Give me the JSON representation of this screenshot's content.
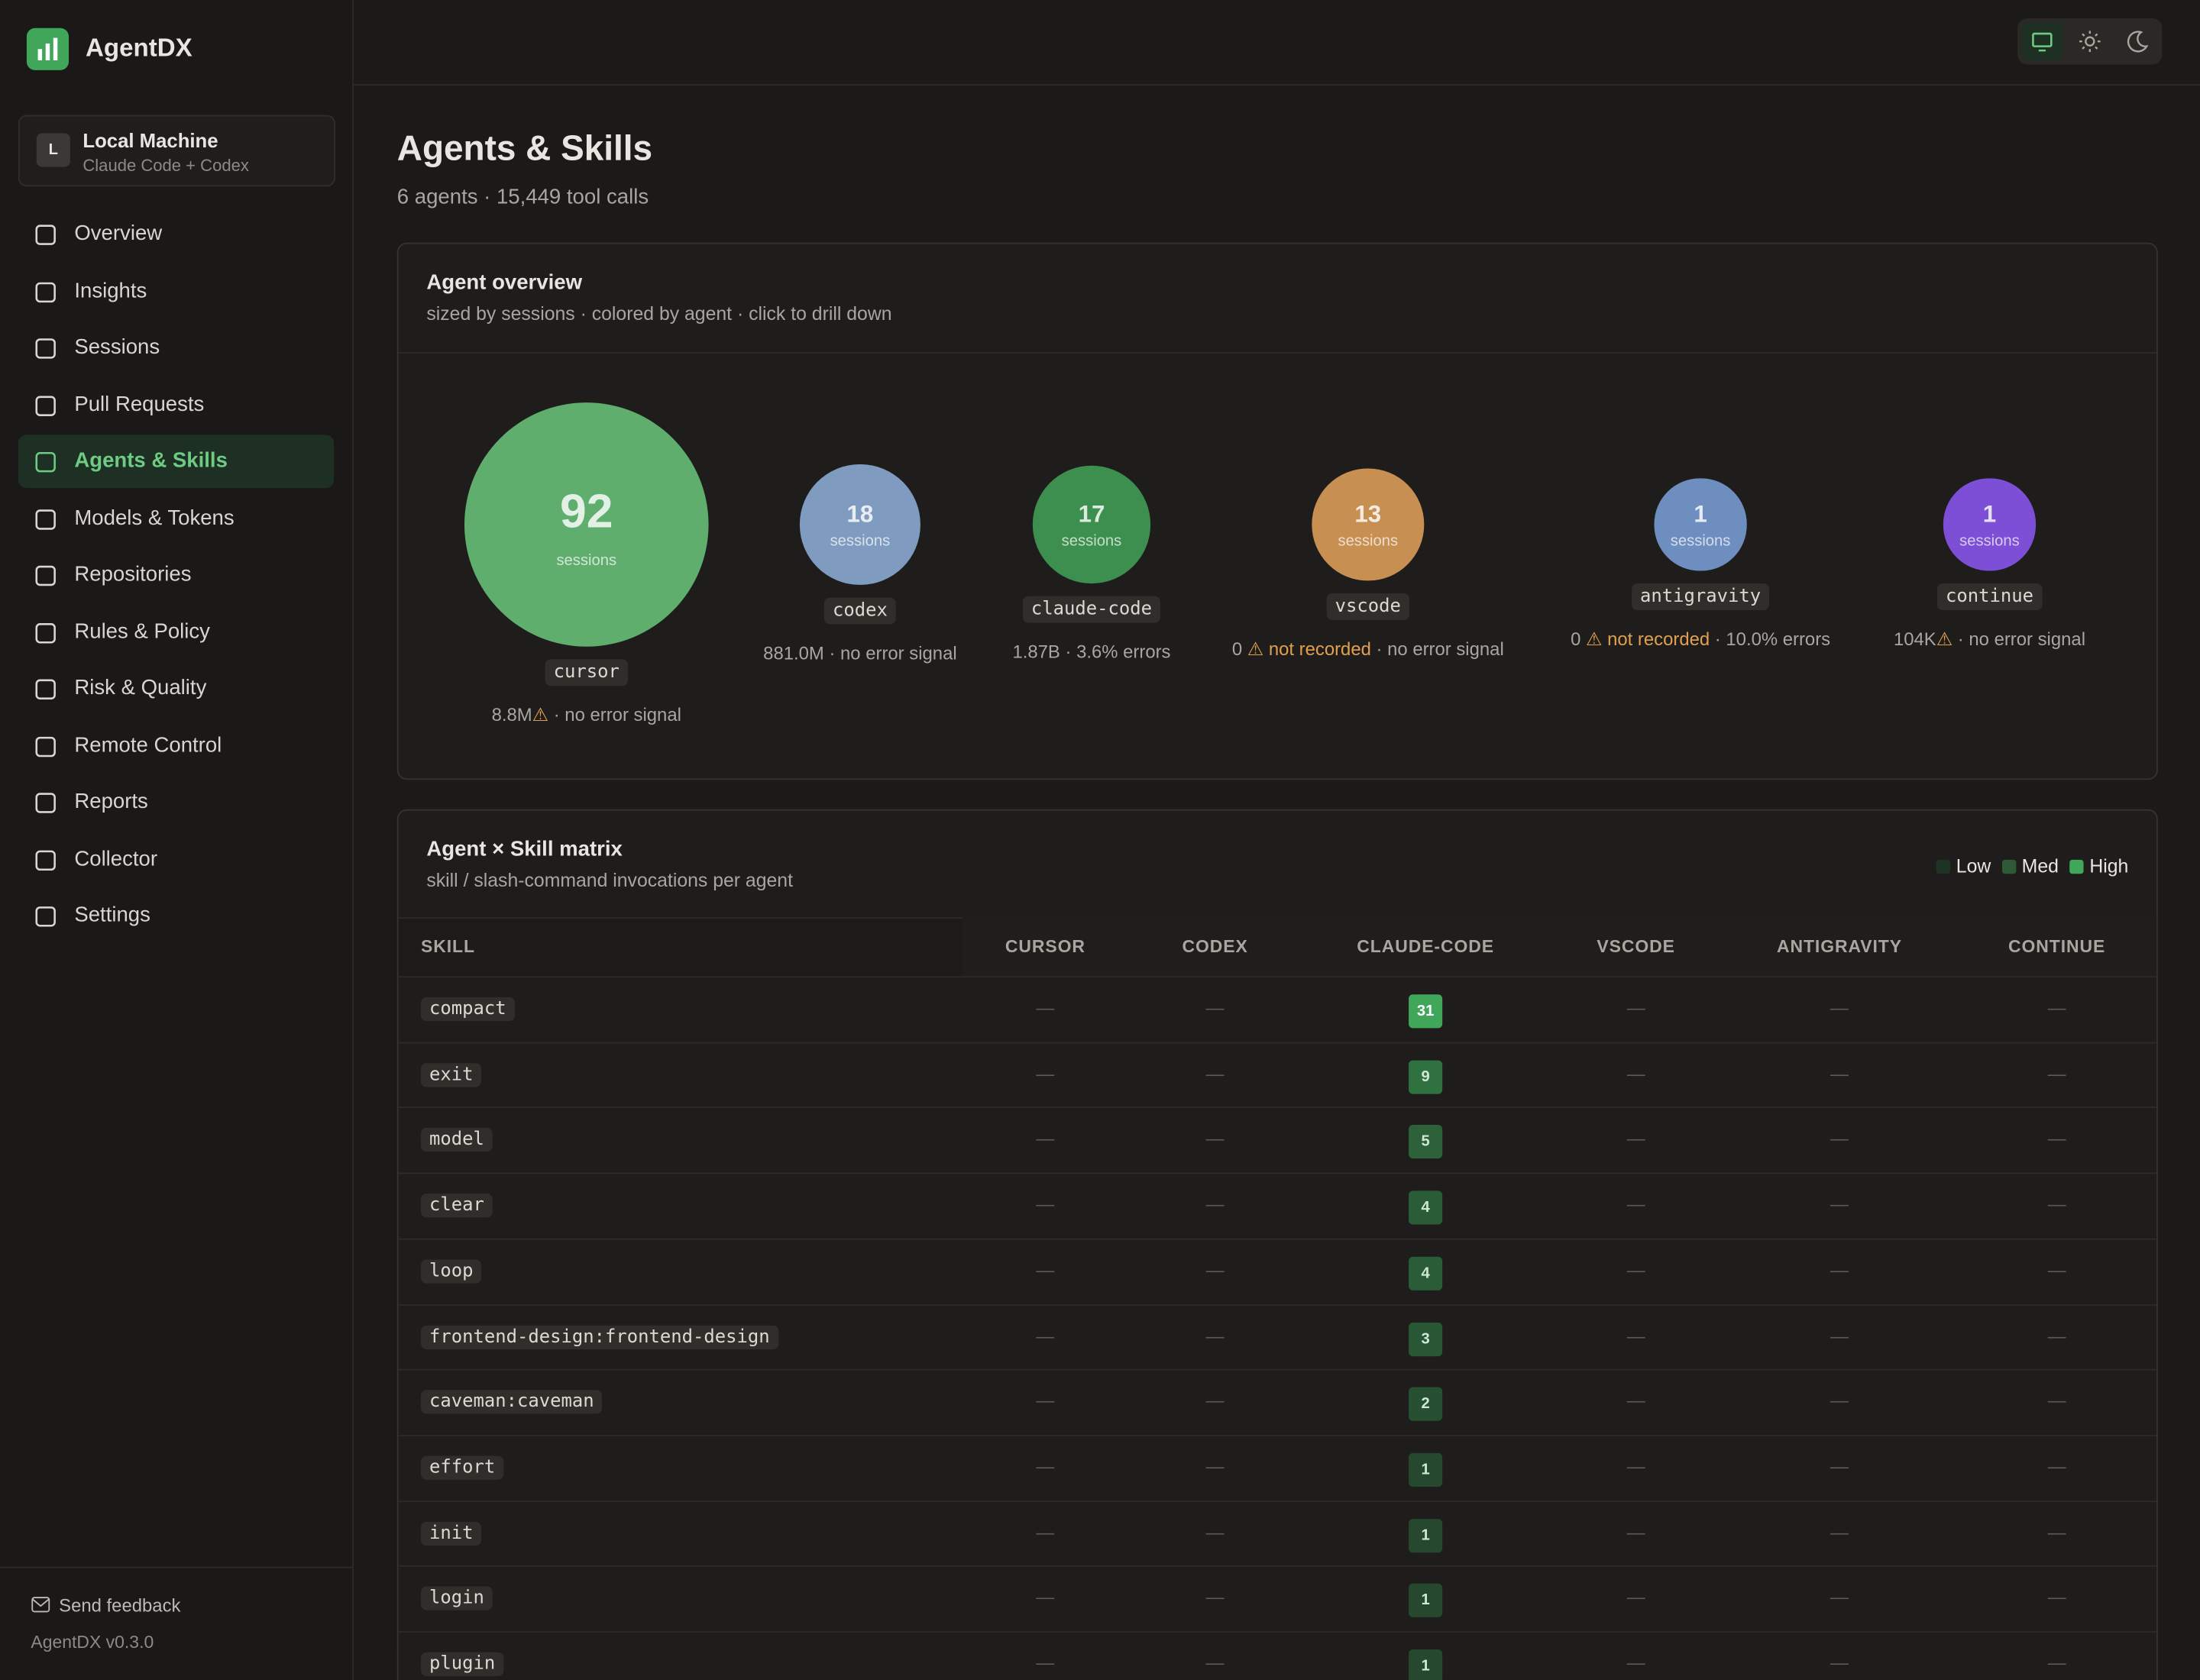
{
  "app": {
    "name": "AgentDX",
    "workspace": {
      "initial": "L",
      "name": "Local Machine",
      "subtitle": "Claude Code + Codex"
    },
    "nav": [
      "Overview",
      "Insights",
      "Sessions",
      "Pull Requests",
      "Agents & Skills",
      "Models & Tokens",
      "Repositories",
      "Rules & Policy",
      "Risk & Quality",
      "Remote Control",
      "Reports",
      "Collector",
      "Settings"
    ],
    "active_nav": 4,
    "feedback": "Send feedback",
    "version": "AgentDX v0.3.0"
  },
  "header": {
    "title": "Agents & Skills",
    "subtitle": "6 agents · 15,449 tool calls"
  },
  "overview": {
    "title": "Agent overview",
    "subtitle": "sized by sessions · colored by agent · click to drill down",
    "unit": "sessions",
    "agents": [
      {
        "name": "cursor",
        "sessions": 92,
        "color": "#5fae6e",
        "stats": [
          {
            "text": "8.8M"
          },
          {
            "text": "⚠",
            "tone": "warn"
          },
          {
            "text": " · no error signal"
          }
        ]
      },
      {
        "name": "codex",
        "sessions": 18,
        "color": "#7f9cc0",
        "stats": [
          {
            "text": "881.0M · no error signal"
          }
        ]
      },
      {
        "name": "claude-code",
        "sessions": 17,
        "color": "#3d8f4f",
        "stats": [
          {
            "text": "1.87B · 3.6% errors"
          }
        ]
      },
      {
        "name": "vscode",
        "sessions": 13,
        "color": "#c88f52",
        "stats": [
          {
            "text": "0 "
          },
          {
            "text": "⚠ not recorded",
            "tone": "warn"
          },
          {
            "text": " · no error signal"
          }
        ]
      },
      {
        "name": "antigravity",
        "sessions": 1,
        "color": "#6f8ec0",
        "stats": [
          {
            "text": "0 "
          },
          {
            "text": "⚠ not recorded",
            "tone": "warn"
          },
          {
            "text": " · 10.0% errors"
          }
        ]
      },
      {
        "name": "continue",
        "sessions": 1,
        "color": "#7d4fd6",
        "stats": [
          {
            "text": "104K"
          },
          {
            "text": "⚠",
            "tone": "warn"
          },
          {
            "text": " · no error signal"
          }
        ]
      }
    ]
  },
  "matrix": {
    "title": "Agent × Skill matrix",
    "subtitle": "skill / slash-command invocations per agent",
    "legend": [
      {
        "label": "Low",
        "color": "#1f3324"
      },
      {
        "label": "Med",
        "color": "#2e5a37"
      },
      {
        "label": "High",
        "color": "#3fa65a"
      }
    ],
    "columns": [
      "SKILL",
      "CURSOR",
      "CODEX",
      "CLAUDE-CODE",
      "VSCODE",
      "ANTIGRAVITY",
      "CONTINUE"
    ],
    "empty": "—",
    "rows": [
      {
        "skill": "compact",
        "values": [
          null,
          null,
          31,
          null,
          null,
          null
        ]
      },
      {
        "skill": "exit",
        "values": [
          null,
          null,
          9,
          null,
          null,
          null
        ]
      },
      {
        "skill": "model",
        "values": [
          null,
          null,
          5,
          null,
          null,
          null
        ]
      },
      {
        "skill": "clear",
        "values": [
          null,
          null,
          4,
          null,
          null,
          null
        ]
      },
      {
        "skill": "loop",
        "values": [
          null,
          null,
          4,
          null,
          null,
          null
        ]
      },
      {
        "skill": "frontend-design:frontend-design",
        "values": [
          null,
          null,
          3,
          null,
          null,
          null
        ]
      },
      {
        "skill": "caveman:caveman",
        "values": [
          null,
          null,
          2,
          null,
          null,
          null
        ]
      },
      {
        "skill": "effort",
        "values": [
          null,
          null,
          1,
          null,
          null,
          null
        ]
      },
      {
        "skill": "init",
        "values": [
          null,
          null,
          1,
          null,
          null,
          null
        ]
      },
      {
        "skill": "login",
        "values": [
          null,
          null,
          1,
          null,
          null,
          null
        ]
      },
      {
        "skill": "plugin",
        "values": [
          null,
          null,
          1,
          null,
          null,
          null
        ]
      }
    ]
  }
}
